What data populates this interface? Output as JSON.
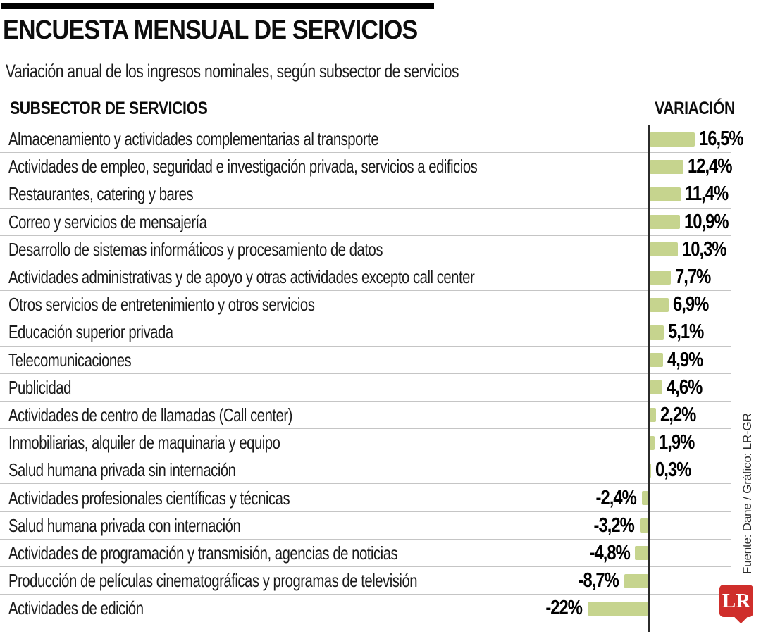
{
  "chart_data": {
    "type": "bar",
    "orientation": "horizontal",
    "title": "ENCUESTA MENSUAL DE SERVICIOS",
    "subtitle": "Variación anual de los ingresos nominales, según subsector de servicios",
    "columns": {
      "category": "SUBSECTOR DE SERVICIOS",
      "value": "VARIACIÓN"
    },
    "categories": [
      "Almacenamiento y actividades complementarias al transporte",
      "Actividades de empleo, seguridad e investigación privada, servicios a edificios",
      "Restaurantes, catering y bares",
      "Correo y servicios de mensajería",
      "Desarrollo de sistemas informáticos y procesamiento de datos",
      "Actividades administrativas y de apoyo y otras actividades excepto call center",
      "Otros servicios de entretenimiento y otros servicios",
      "Educación superior privada",
      "Telecomunicaciones",
      "Publicidad",
      "Actividades de centro de llamadas (Call center)",
      "Inmobiliarias, alquiler de maquinaria y equipo",
      "Salud humana privada sin internación",
      "Actividades profesionales científicas y técnicas",
      "Salud humana privada con internación",
      "Actividades de programación y transmisión, agencias de noticias",
      "Producción de películas cinematográficas y programas de televisión",
      "Actividades de edición"
    ],
    "values": [
      16.5,
      12.4,
      11.4,
      10.9,
      10.3,
      7.7,
      6.9,
      5.1,
      4.9,
      4.6,
      2.2,
      1.9,
      0.3,
      -2.4,
      -3.2,
      -4.8,
      -8.7,
      -22
    ],
    "value_labels": [
      "16,5%",
      "12,4%",
      "11,4%",
      "10,9%",
      "10,3%",
      "7,7%",
      "6,9%",
      "5,1%",
      "4,9%",
      "4,6%",
      "2,2%",
      "1,9%",
      "0,3%",
      "-2,4%",
      "-3,2%",
      "-4,8%",
      "-8,7%",
      "-22%"
    ],
    "bar_color": "#c6d48e",
    "xlim": [
      -24,
      18
    ],
    "grid": "row-separators",
    "legend": false
  },
  "footer": {
    "source": "Fuente: Dane / Gráfico: LR-GR",
    "logo_text": "LR"
  },
  "colors": {
    "bar_green": "#c6d48e",
    "logo_red": "#cf2e2b",
    "separator_gray": "#c5c5c5",
    "axis_black": "#2b2b2b"
  }
}
